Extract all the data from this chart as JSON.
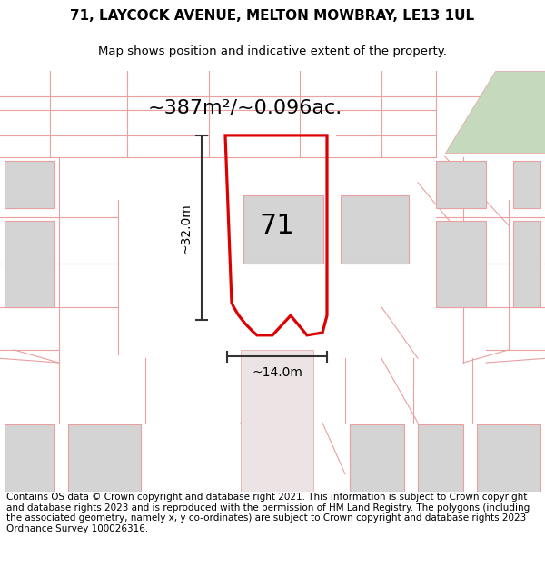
{
  "title_line1": "71, LAYCOCK AVENUE, MELTON MOWBRAY, LE13 1UL",
  "title_line2": "Map shows position and indicative extent of the property.",
  "area_label": "~387m²/~0.096ac.",
  "width_label": "~14.0m",
  "height_label": "~32.0m",
  "number_label": "71",
  "footer_text": "Contains OS data © Crown copyright and database right 2021. This information is subject to Crown copyright and database rights 2023 and is reproduced with the permission of HM Land Registry. The polygons (including the associated geometry, namely x, y co-ordinates) are subject to Crown copyright and database rights 2023 Ordnance Survey 100026316.",
  "bg_color": "#ffffff",
  "map_bg": "#f5ecec",
  "plot_outline_color": "#dd0000",
  "building_color": "#d4d4d4",
  "pink_line_color": "#e8a0a0",
  "green_patch_color": "#c5d9bc",
  "title_fontsize": 11,
  "subtitle_fontsize": 9.5,
  "area_fontsize": 16,
  "number_fontsize": 22,
  "dim_fontsize": 10,
  "footer_fontsize": 7.5
}
